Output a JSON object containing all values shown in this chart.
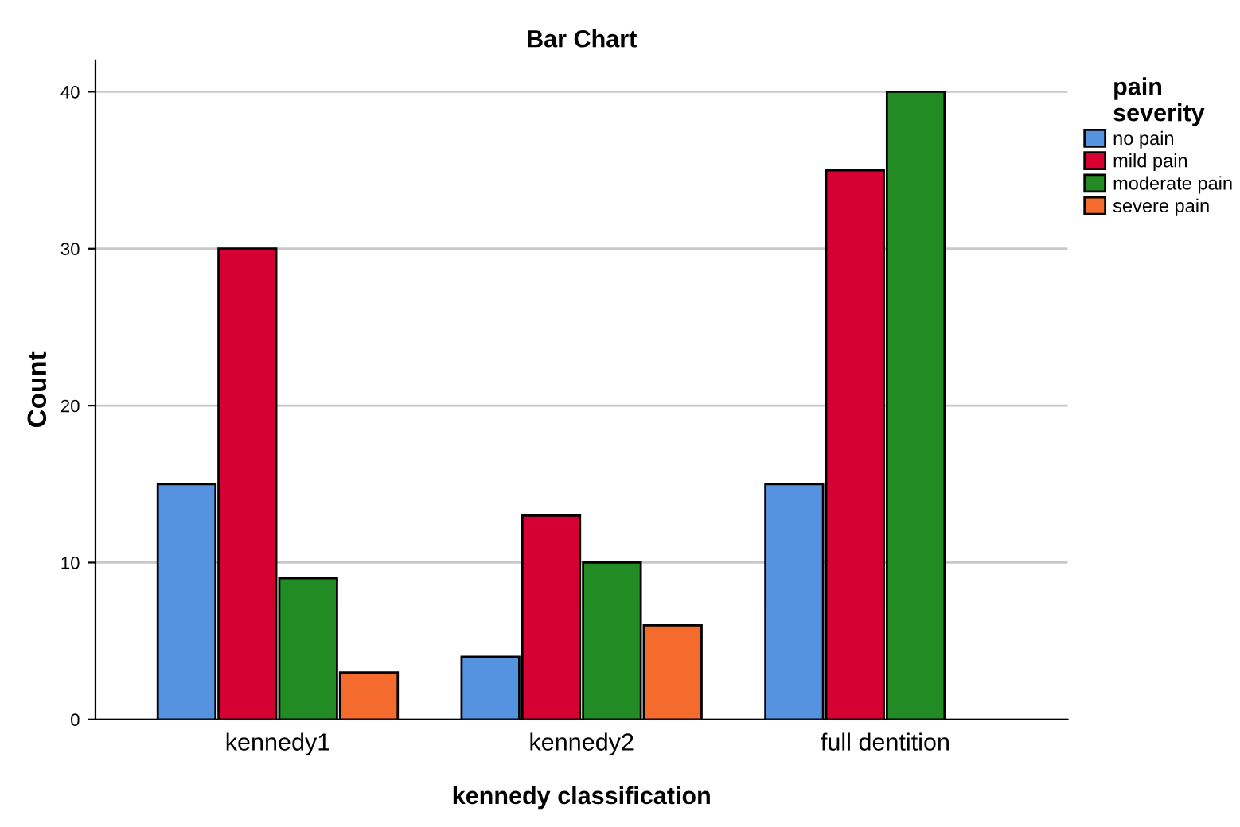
{
  "chart_data": {
    "type": "bar",
    "title": "Bar Chart",
    "xlabel": "kennedy classification",
    "ylabel": "Count",
    "legend_title": "pain\nseverity",
    "categories": [
      "kennedy1",
      "kennedy2",
      "full dentition"
    ],
    "series": [
      {
        "name": "no pain",
        "color": "#5593e0",
        "values": [
          15,
          4,
          15
        ]
      },
      {
        "name": "mild pain",
        "color": "#d60032",
        "values": [
          30,
          13,
          35
        ]
      },
      {
        "name": "moderate pain",
        "color": "#238b23",
        "values": [
          9,
          10,
          40
        ]
      },
      {
        "name": "severe pain",
        "color": "#f46b2d",
        "values": [
          3,
          6,
          null
        ]
      }
    ],
    "ylim": [
      0,
      42
    ],
    "yticks": [
      0,
      10,
      20,
      30,
      40
    ],
    "grid": "y",
    "legend": "right"
  }
}
